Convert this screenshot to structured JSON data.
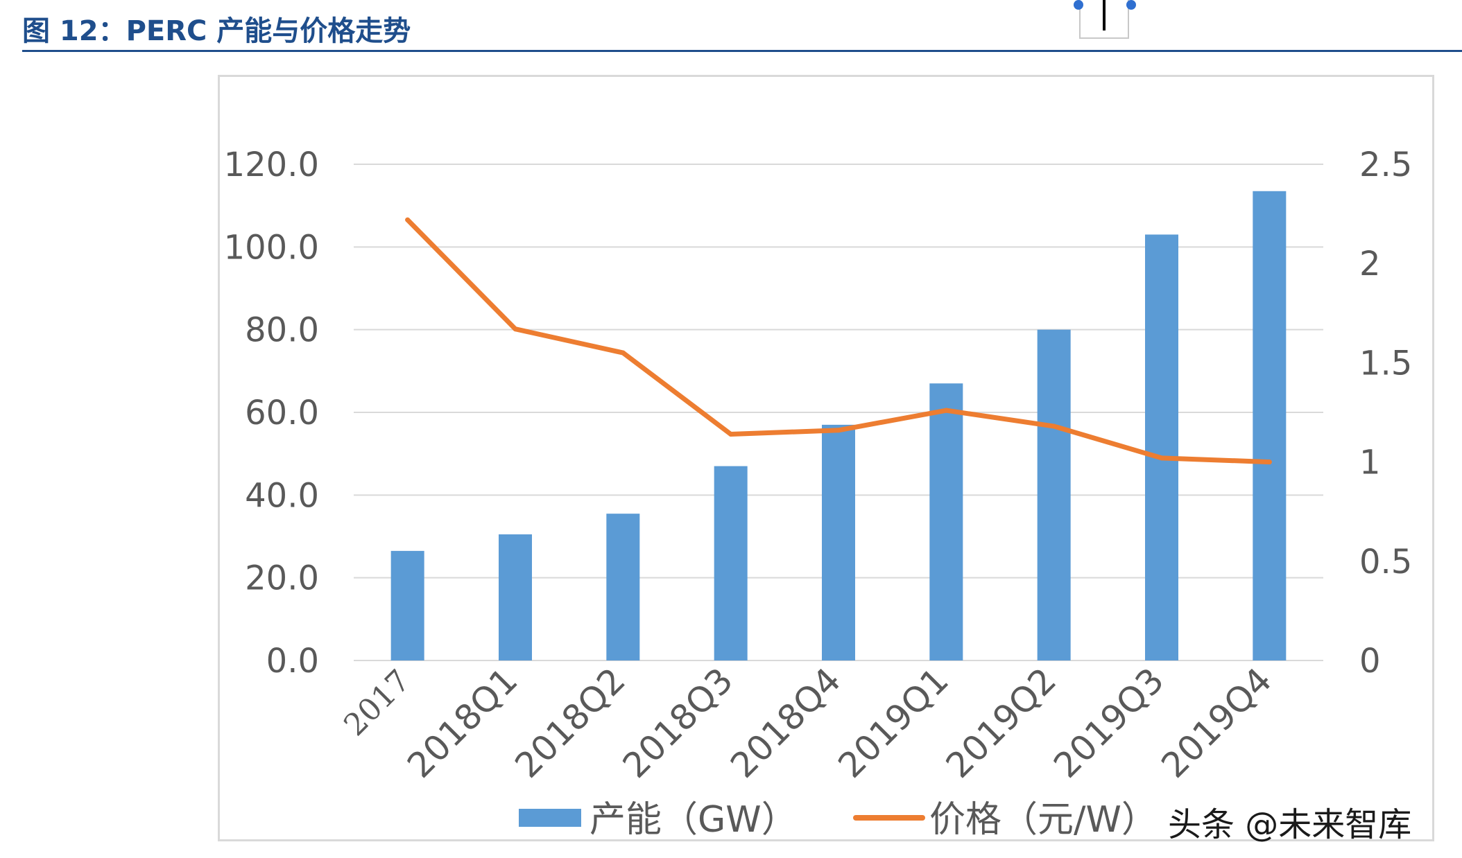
{
  "figure": {
    "title": "图 12：PERC 产能与价格走势"
  },
  "watermark": "头条 @未来智库",
  "colors": {
    "title": "#1f4e8c",
    "bar": "#5b9bd5",
    "line": "#ed7d31",
    "grid": "#d9d9d9",
    "tick_text": "#595959"
  },
  "chart_data": {
    "type": "bar",
    "categories": [
      "2017",
      "2018Q1",
      "2018Q2",
      "2018Q3",
      "2018Q4",
      "2019Q1",
      "2019Q2",
      "2019Q3",
      "2019Q4"
    ],
    "series": [
      {
        "name": "产能（GW）",
        "type": "bar",
        "axis": "left",
        "values": [
          26.5,
          30.5,
          35.5,
          47.0,
          57.0,
          67.0,
          80.0,
          103.0,
          113.5
        ]
      },
      {
        "name": "价格（元/W）",
        "type": "line",
        "axis": "right",
        "values": [
          2.22,
          1.67,
          1.55,
          1.14,
          1.16,
          1.26,
          1.18,
          1.02,
          1.0
        ]
      }
    ],
    "y_left": {
      "range": [
        0,
        120
      ],
      "ticks": [
        0,
        20,
        40,
        60,
        80,
        100,
        120
      ],
      "tick_labels": [
        "0.0",
        "20.0",
        "40.0",
        "60.0",
        "80.0",
        "100.0",
        "120.0"
      ]
    },
    "y_right": {
      "range": [
        0,
        2.5
      ],
      "ticks": [
        0,
        0.5,
        1,
        1.5,
        2,
        2.5
      ],
      "tick_labels": [
        "0",
        "0.5",
        "1",
        "1.5",
        "2",
        "2.5"
      ]
    },
    "grid": true,
    "legend_position": "bottom"
  }
}
